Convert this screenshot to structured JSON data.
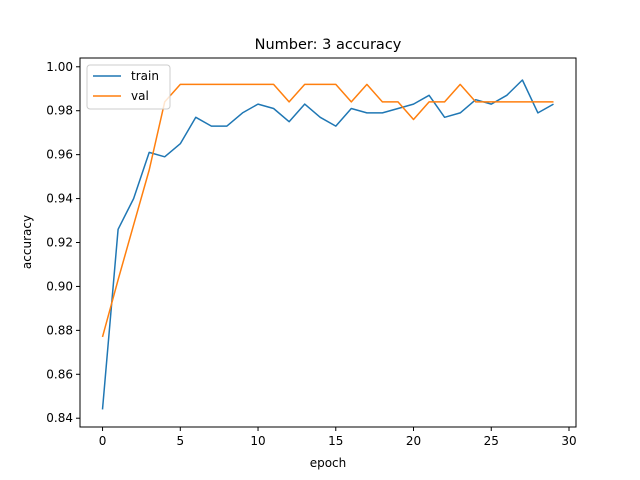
{
  "chart_data": {
    "type": "line",
    "title": "Number: 3 accuracy",
    "xlabel": "epoch",
    "ylabel": "accuracy",
    "xlim": [
      -1.45,
      30.45
    ],
    "ylim": [
      0.836,
      1.004
    ],
    "xticks": [
      0,
      5,
      10,
      15,
      20,
      25,
      30
    ],
    "yticks": [
      0.84,
      0.86,
      0.88,
      0.9,
      0.92,
      0.94,
      0.96,
      0.98,
      1.0
    ],
    "ytick_labels": [
      "0.84",
      "0.86",
      "0.88",
      "0.90",
      "0.92",
      "0.94",
      "0.96",
      "0.98",
      "1.00"
    ],
    "grid": false,
    "legend_position": "upper-left",
    "x": [
      0,
      1,
      2,
      3,
      4,
      5,
      6,
      7,
      8,
      9,
      10,
      11,
      12,
      13,
      14,
      15,
      16,
      17,
      18,
      19,
      20,
      21,
      22,
      23,
      24,
      25,
      26,
      27,
      28,
      29
    ],
    "series": [
      {
        "name": "train",
        "color": "#1f77b4",
        "values": [
          0.844,
          0.926,
          0.94,
          0.961,
          0.959,
          0.965,
          0.977,
          0.973,
          0.973,
          0.979,
          0.983,
          0.981,
          0.975,
          0.983,
          0.977,
          0.973,
          0.981,
          0.979,
          0.979,
          0.981,
          0.983,
          0.987,
          0.977,
          0.979,
          0.985,
          0.983,
          0.987,
          0.994,
          0.979,
          0.983
        ]
      },
      {
        "name": "val",
        "color": "#ff7f0e",
        "values": [
          0.877,
          0.903,
          0.928,
          0.953,
          0.984,
          0.992,
          0.992,
          0.992,
          0.992,
          0.992,
          0.992,
          0.992,
          0.984,
          0.992,
          0.992,
          0.992,
          0.984,
          0.992,
          0.984,
          0.984,
          0.976,
          0.984,
          0.984,
          0.992,
          0.984,
          0.984,
          0.984,
          0.984,
          0.984,
          0.984
        ]
      }
    ]
  }
}
